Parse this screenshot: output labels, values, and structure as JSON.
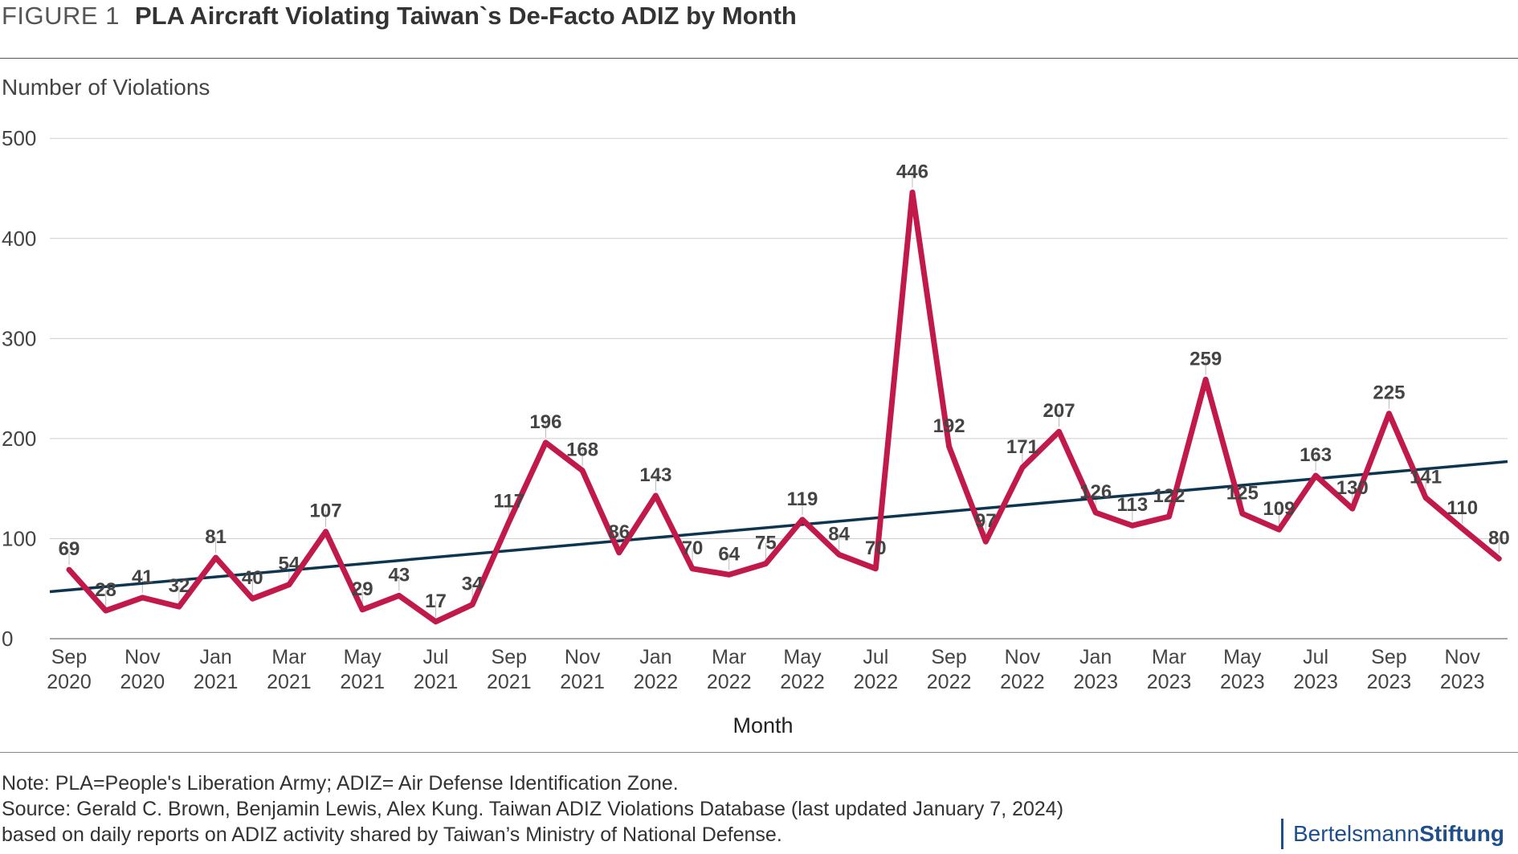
{
  "header": {
    "figure_number": "FIGURE 1",
    "title": "PLA Aircraft Violating Taiwan`s De-Facto ADIZ by Month"
  },
  "chart_data": {
    "type": "line",
    "title": "PLA Aircraft Violating Taiwan`s De-Facto ADIZ by Month",
    "ylabel": "Number of Violations",
    "xlabel": "Month",
    "ylim": [
      0,
      500
    ],
    "yticks": [
      0,
      100,
      200,
      300,
      400,
      500
    ],
    "grid": "horizontal",
    "x": [
      "Sep 2020",
      "Oct 2020",
      "Nov 2020",
      "Dec 2020",
      "Jan 2021",
      "Feb 2021",
      "Mar 2021",
      "Apr 2021",
      "May 2021",
      "Jun 2021",
      "Jul 2021",
      "Aug 2021",
      "Sep 2021",
      "Oct 2021",
      "Nov 2021",
      "Dec 2021",
      "Jan 2022",
      "Feb 2022",
      "Mar 2022",
      "Apr 2022",
      "May 2022",
      "Jun 2022",
      "Jul 2022",
      "Aug 2022",
      "Sep 2022",
      "Oct 2022",
      "Nov 2022",
      "Dec 2022",
      "Jan 2023",
      "Feb 2023",
      "Mar 2023",
      "Apr 2023",
      "May 2023",
      "Jun 2023",
      "Jul 2023",
      "Aug 2023",
      "Sep 2023",
      "Oct 2023",
      "Nov 2023",
      "Dec 2023"
    ],
    "tick_labels": [
      {
        "month": "Sep",
        "year": "2020",
        "index": 0
      },
      {
        "month": "Nov",
        "year": "2020",
        "index": 2
      },
      {
        "month": "Jan",
        "year": "2021",
        "index": 4
      },
      {
        "month": "Mar",
        "year": "2021",
        "index": 6
      },
      {
        "month": "May",
        "year": "2021",
        "index": 8
      },
      {
        "month": "Jul",
        "year": "2021",
        "index": 10
      },
      {
        "month": "Sep",
        "year": "2021",
        "index": 12
      },
      {
        "month": "Nov",
        "year": "2021",
        "index": 14
      },
      {
        "month": "Jan",
        "year": "2022",
        "index": 16
      },
      {
        "month": "Mar",
        "year": "2022",
        "index": 18
      },
      {
        "month": "May",
        "year": "2022",
        "index": 20
      },
      {
        "month": "Jul",
        "year": "2022",
        "index": 22
      },
      {
        "month": "Sep",
        "year": "2022",
        "index": 24
      },
      {
        "month": "Nov",
        "year": "2022",
        "index": 26
      },
      {
        "month": "Jan",
        "year": "2023",
        "index": 28
      },
      {
        "month": "Mar",
        "year": "2023",
        "index": 30
      },
      {
        "month": "May",
        "year": "2023",
        "index": 32
      },
      {
        "month": "Jul",
        "year": "2023",
        "index": 34
      },
      {
        "month": "Sep",
        "year": "2023",
        "index": 36
      },
      {
        "month": "Nov",
        "year": "2023",
        "index": 38
      }
    ],
    "series": [
      {
        "color": "#c0194a",
        "values": [
          69,
          28,
          41,
          32,
          81,
          40,
          54,
          107,
          29,
          43,
          17,
          34,
          117,
          196,
          168,
          86,
          143,
          70,
          64,
          75,
          119,
          84,
          70,
          446,
          192,
          97,
          171,
          207,
          126,
          113,
          122,
          259,
          125,
          109,
          163,
          130,
          225,
          141,
          110,
          80
        ]
      }
    ],
    "trendline": {
      "color": "#0d3550",
      "start": 47,
      "end": 177
    }
  },
  "notes": {
    "note": "Note: PLA=People's Liberation Army; ADIZ= Air Defense Identification Zone.",
    "source_line1": "Source: Gerald C. Brown, Benjamin Lewis, Alex Kung. Taiwan ADIZ Violations Database (last updated January 7, 2024)",
    "source_line2": "based on daily reports on ADIZ activity shared by Taiwan’s Ministry of National Defense."
  },
  "brand": {
    "part1": "Bertelsmann",
    "part2": "Stiftung",
    "color": "#1f4e8c"
  }
}
